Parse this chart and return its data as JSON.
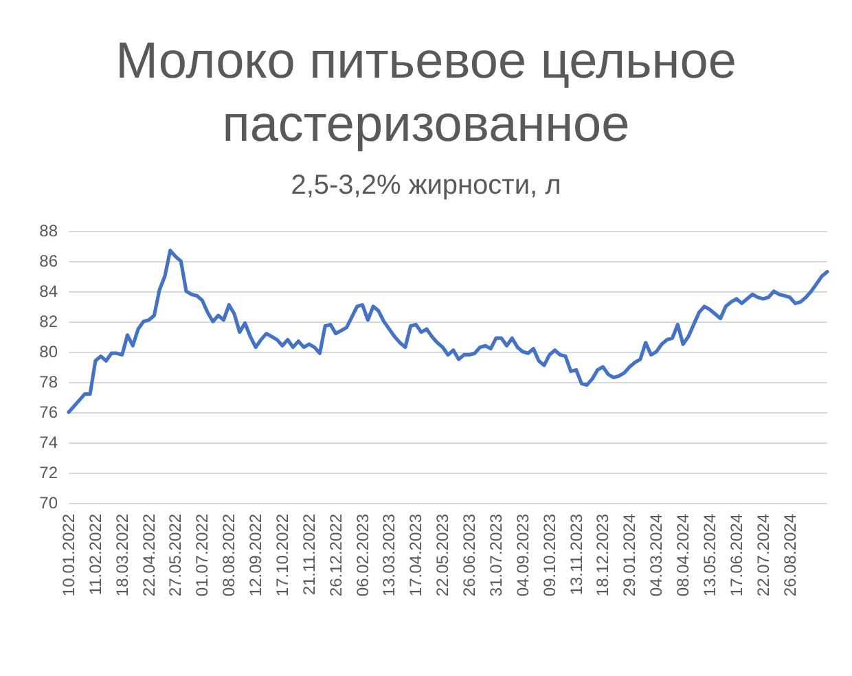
{
  "chart_data": {
    "type": "line",
    "title": "Молоко питьевое цельное пастеризованное",
    "subtitle": "2,5-3,2% жирности, л",
    "categories": [
      "10.01.2022",
      null,
      null,
      null,
      null,
      "11.02.2022",
      null,
      null,
      null,
      null,
      "18.03.2022",
      null,
      null,
      null,
      null,
      "22.04.2022",
      null,
      null,
      null,
      null,
      "27.05.2022",
      null,
      null,
      null,
      null,
      "01.07.2022",
      null,
      null,
      null,
      null,
      "08.08.2022",
      null,
      null,
      null,
      null,
      "12.09.2022",
      null,
      null,
      null,
      null,
      "17.10.2022",
      null,
      null,
      null,
      null,
      "21.11.2022",
      null,
      null,
      null,
      null,
      "26.12.2022",
      null,
      null,
      null,
      null,
      "06.02.2023",
      null,
      null,
      null,
      null,
      "13.03.2023",
      null,
      null,
      null,
      null,
      "17.04.2023",
      null,
      null,
      null,
      null,
      "22.05.2023",
      null,
      null,
      null,
      null,
      "26.06.2023",
      null,
      null,
      null,
      null,
      "31.07.2023",
      null,
      null,
      null,
      null,
      "04.09.2023",
      null,
      null,
      null,
      null,
      "09.10.2023",
      null,
      null,
      null,
      null,
      "13.11.2023",
      null,
      null,
      null,
      null,
      "18.12.2023",
      null,
      null,
      null,
      null,
      "29.01.2024",
      null,
      null,
      null,
      null,
      "04.03.2024",
      null,
      null,
      null,
      null,
      "08.04.2024",
      null,
      null,
      null,
      null,
      "13.05.2024",
      null,
      null,
      null,
      null,
      "17.06.2024",
      null,
      null,
      null,
      null,
      "22.07.2024",
      null,
      null,
      null,
      null,
      "26.08.2024",
      null,
      null,
      null,
      null,
      null,
      null,
      null
    ],
    "series": [
      {
        "color": "#4472c4",
        "values": [
          76.0,
          76.4,
          76.8,
          77.2,
          77.2,
          79.4,
          79.7,
          79.4,
          79.9,
          79.9,
          79.8,
          81.1,
          80.4,
          81.5,
          82.0,
          82.1,
          82.4,
          84.1,
          85.0,
          86.7,
          86.3,
          86.0,
          84.0,
          83.8,
          83.7,
          83.4,
          82.6,
          82.0,
          82.4,
          82.1,
          83.1,
          82.5,
          81.3,
          81.9,
          81.0,
          80.3,
          80.8,
          81.2,
          81.0,
          80.8,
          80.4,
          80.8,
          80.3,
          80.7,
          80.3,
          80.5,
          80.3,
          79.9,
          81.7,
          81.8,
          81.2,
          81.4,
          81.6,
          82.3,
          83.0,
          83.1,
          82.1,
          83.0,
          82.7,
          82.0,
          81.5,
          81.0,
          80.6,
          80.3,
          81.7,
          81.8,
          81.3,
          81.5,
          81.0,
          80.6,
          80.3,
          79.8,
          80.1,
          79.5,
          79.8,
          79.8,
          79.9,
          80.3,
          80.4,
          80.2,
          80.9,
          80.9,
          80.4,
          80.9,
          80.3,
          80.0,
          79.9,
          80.2,
          79.4,
          79.1,
          79.8,
          80.1,
          79.8,
          79.7,
          78.7,
          78.8,
          77.9,
          77.8,
          78.2,
          78.8,
          79.0,
          78.5,
          78.3,
          78.4,
          78.6,
          79.0,
          79.3,
          79.5,
          80.6,
          79.8,
          80.0,
          80.5,
          80.8,
          80.9,
          81.8,
          80.5,
          81.0,
          81.8,
          82.6,
          83.0,
          82.8,
          82.5,
          82.2,
          83.0,
          83.3,
          83.5,
          83.2,
          83.5,
          83.8,
          83.6,
          83.5,
          83.6,
          84.0,
          83.8,
          83.7,
          83.6,
          83.2,
          83.3,
          83.6,
          84.0,
          84.5,
          85.0,
          85.3
        ]
      }
    ],
    "ylim": [
      70,
      88
    ],
    "yticks": [
      70,
      72,
      74,
      76,
      78,
      80,
      82,
      84,
      86,
      88
    ],
    "grid": "y",
    "marker": "none",
    "line_style": "solid"
  }
}
